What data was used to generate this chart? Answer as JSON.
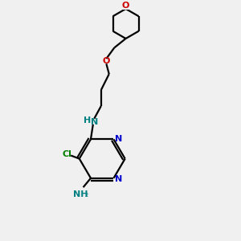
{
  "bg_color": "#f0f0f0",
  "bond_color": "#000000",
  "n_color": "#0000cc",
  "o_color": "#cc0000",
  "cl_color": "#008000",
  "nh_color": "#008080",
  "line_width": 1.6,
  "fig_size": [
    3.0,
    3.0
  ],
  "dpi": 100,
  "xlim": [
    0,
    10
  ],
  "ylim": [
    0,
    10
  ]
}
